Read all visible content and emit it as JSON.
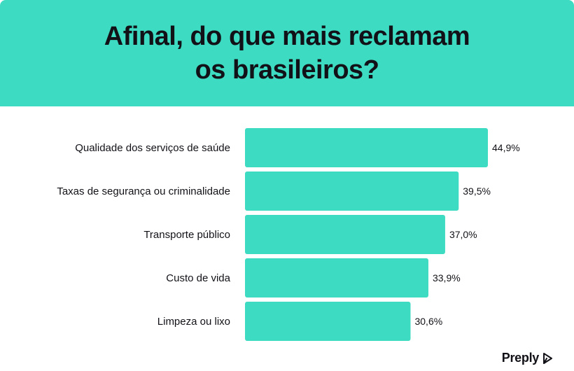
{
  "header": {
    "title_line1": "Afinal, do que mais reclamam",
    "title_line2": "os brasileiros?"
  },
  "brand": {
    "name": "Preply",
    "icon": "preply-logo-icon"
  },
  "colors": {
    "accent": "#3ddbc1",
    "text": "#121117"
  },
  "chart_data": {
    "type": "bar",
    "orientation": "horizontal",
    "categories": [
      "Qualidade dos serviços de saúde",
      "Taxas de segurança ou criminalidade",
      "Transporte público",
      "Custo de vida",
      "Limpeza ou lixo"
    ],
    "values": [
      44.9,
      39.5,
      37.0,
      33.9,
      30.6
    ],
    "value_labels": [
      "44,9%",
      "39,5%",
      "37,0%",
      "33,9%",
      "30,6%"
    ],
    "unit": "%",
    "xlim": [
      0,
      44.9
    ],
    "grid": false,
    "legend": "none"
  }
}
